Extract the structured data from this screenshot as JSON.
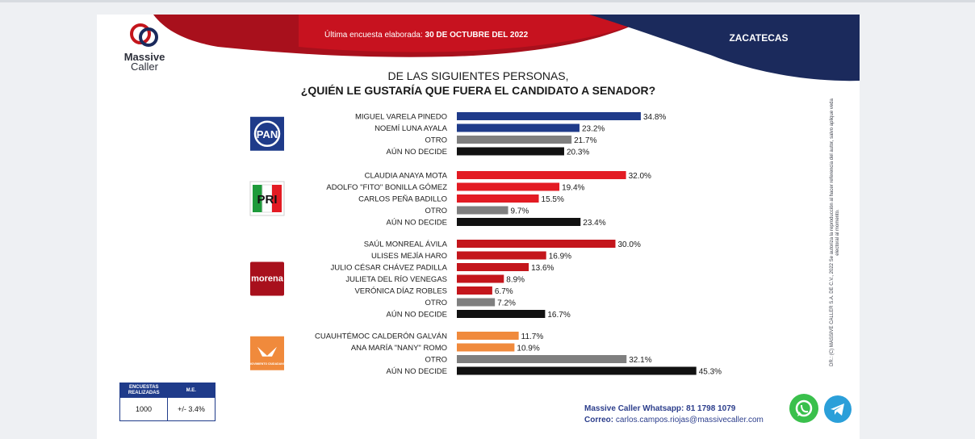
{
  "header": {
    "logo_line1": "Massive",
    "logo_line2": "Caller",
    "survey_label": "Última encuesta elaborada:",
    "survey_date": "30 DE OCTUBRE DEL 2022",
    "region": "ZACATECAS"
  },
  "question": {
    "line1": "DE LAS SIGUIENTES PERSONAS,",
    "line2": "¿QUIÉN LE GUSTARÍA QUE FUERA EL CANDIDATO A SENADOR?"
  },
  "chart_data": {
    "type": "bar",
    "orientation": "horizontal",
    "value_suffix": "%",
    "colors": {
      "pan": "#1f3b8a",
      "pri": "#e31b23",
      "morena": "#c4161c",
      "mc": "#f08a3c",
      "otro": "#7f7f7f",
      "no_decide": "#111111"
    },
    "groups": [
      {
        "party": "PAN",
        "logo_text": "PAN",
        "items": [
          {
            "label": "MIGUEL VARELA PINEDO",
            "value": 34.8,
            "color": "#1f3b8a"
          },
          {
            "label": "NOEMÍ LUNA AYALA",
            "value": 23.2,
            "color": "#1f3b8a"
          },
          {
            "label": "OTRO",
            "value": 21.7,
            "color": "#7f7f7f"
          },
          {
            "label": "AÚN NO DECIDE",
            "value": 20.3,
            "color": "#111111"
          }
        ]
      },
      {
        "party": "PRI",
        "logo_text": "PRI",
        "items": [
          {
            "label": "CLAUDIA ANAYA MOTA",
            "value": 32.0,
            "color": "#e31b23"
          },
          {
            "label": "ADOLFO \"FITO\" BONILLA GÓMEZ",
            "value": 19.4,
            "color": "#e31b23"
          },
          {
            "label": "CARLOS PEÑA BADILLO",
            "value": 15.5,
            "color": "#e31b23"
          },
          {
            "label": "OTRO",
            "value": 9.7,
            "color": "#7f7f7f"
          },
          {
            "label": "AÚN NO DECIDE",
            "value": 23.4,
            "color": "#111111"
          }
        ]
      },
      {
        "party": "MORENA",
        "logo_text": "morena",
        "items": [
          {
            "label": "SAÚL MONREAL ÁVILA",
            "value": 30.0,
            "color": "#c4161c"
          },
          {
            "label": "ULISES MEJÍA HARO",
            "value": 16.9,
            "color": "#c4161c"
          },
          {
            "label": "JULIO CÉSAR CHÁVEZ PADILLA",
            "value": 13.6,
            "color": "#c4161c"
          },
          {
            "label": "JULIETA DEL RÍO VENEGAS",
            "value": 8.9,
            "color": "#c4161c"
          },
          {
            "label": "VERÓNICA DÍAZ ROBLES",
            "value": 6.7,
            "color": "#c4161c"
          },
          {
            "label": "OTRO",
            "value": 7.2,
            "color": "#7f7f7f"
          },
          {
            "label": "AÚN NO DECIDE",
            "value": 16.7,
            "color": "#111111"
          }
        ]
      },
      {
        "party": "MOVIMIENTO CIUDADANO",
        "logo_text": "MOVIMIENTO CIUDADANO",
        "items": [
          {
            "label": "CUAUHTÉMOC CALDERÓN GALVÁN",
            "value": 11.7,
            "color": "#f08a3c"
          },
          {
            "label": "ANA MARÍA \"NANY\" ROMO",
            "value": 10.9,
            "color": "#f08a3c"
          },
          {
            "label": "OTRO",
            "value": 32.1,
            "color": "#7f7f7f"
          },
          {
            "label": "AÚN NO DECIDE",
            "value": 45.3,
            "color": "#111111"
          }
        ]
      }
    ]
  },
  "credit": "DR.: (C) MASSIVE CALLER S.A. DE C.V., 2022 Se autoriza la reproducción al hacer referencia del autor, salvo aplique veda electoral al momento.",
  "info_box": {
    "col1_header": "ENCUESTAS REALIZADAS",
    "col2_header": "M.E.",
    "col1_value": "1000",
    "col2_value": "+/- 3.4%"
  },
  "contact": {
    "whatsapp_label": "Massive Caller Whatsapp:",
    "whatsapp_number": "81 1798 1079",
    "email_label": "Correo:",
    "email": "carlos.campos.riojas@massivecaller.com"
  }
}
